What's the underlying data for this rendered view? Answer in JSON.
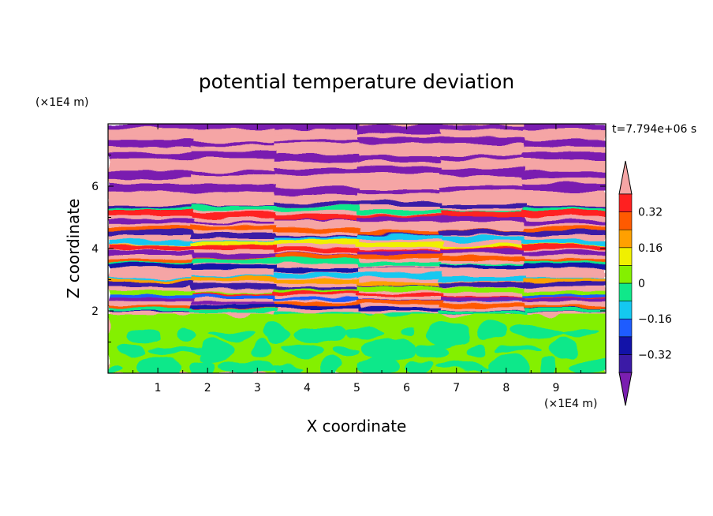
{
  "chart_data": {
    "type": "heatmap",
    "title": "potential temperature deviation",
    "xlabel": "X coordinate",
    "ylabel": "Z coordinate",
    "x_unit": "(×1E4 m)",
    "y_unit": "(×1E4 m)",
    "time_label": "t=7.794e+06 s",
    "xlim": [
      0,
      10
    ],
    "ylim": [
      0,
      8
    ],
    "x_ticks": [
      1,
      2,
      3,
      4,
      5,
      6,
      7,
      8,
      9
    ],
    "y_ticks": [
      2,
      4,
      6
    ],
    "colorbar": {
      "levels": [
        -0.4,
        -0.32,
        -0.24,
        -0.16,
        -0.08,
        0,
        0.08,
        0.16,
        0.24,
        0.32,
        0.4
      ],
      "colors": [
        "#7a1fb0",
        "#3b1aa6",
        "#1212a8",
        "#1e5cff",
        "#14c8f0",
        "#10e88a",
        "#84f000",
        "#f0f000",
        "#ffa000",
        "#ff5a00",
        "#ff2020",
        "#f5a5a5"
      ],
      "tick_labels": [
        "0.32",
        "0.16",
        "0",
        "-0.16",
        "-0.32"
      ],
      "tick_values": [
        0.32,
        0.16,
        0,
        -0.16,
        -0.32
      ],
      "extend": "both"
    },
    "grid": false,
    "regions": [
      {
        "z_range": [
          0,
          2
        ],
        "description_value": "near zero (0 to 0.08)",
        "dominant_levels": [
          0,
          0.08
        ]
      },
      {
        "z_range": [
          2,
          5.5
        ],
        "description_value": "mixed layered bands",
        "dominant_levels": [
          -0.32,
          0.32
        ]
      },
      {
        "z_range": [
          5.5,
          8
        ],
        "description_value": "alternating bands",
        "dominant_levels": [
          -0.4,
          0.4
        ]
      }
    ]
  }
}
